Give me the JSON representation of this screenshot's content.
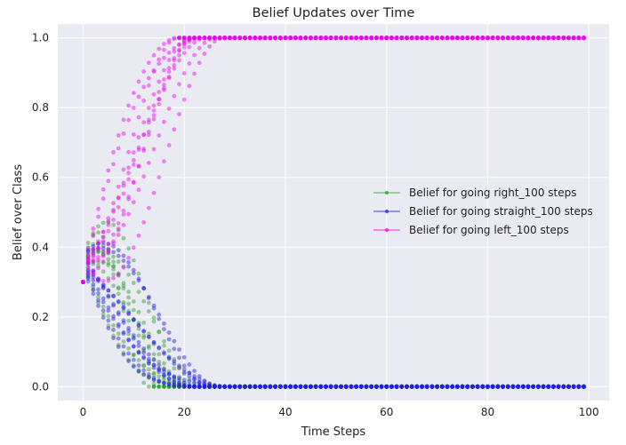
{
  "chart_data": {
    "type": "scatter",
    "title": "Belief Updates over Time",
    "xlabel": "Time Steps",
    "ylabel": "Belief over Class",
    "xlim": [
      -5,
      104
    ],
    "ylim": [
      -0.04,
      1.04
    ],
    "xticks": [
      0,
      20,
      40,
      60,
      80,
      100
    ],
    "yticks": [
      0.0,
      0.2,
      0.4,
      0.6,
      0.8,
      1.0
    ],
    "ytick_labels": [
      "0.0",
      "0.2",
      "0.4",
      "0.6",
      "0.8",
      "1.0"
    ],
    "grid": true,
    "legend_position": "center-right",
    "steps": 100,
    "series": [
      {
        "name": "Belief for going right_100 steps",
        "color": "#2ca02c",
        "bundle": [
          {
            "converge_step": 17,
            "peak": 0.0,
            "dip": 0.0
          },
          {
            "converge_step": 21,
            "peak": 0.0,
            "dip": 0.0
          }
        ]
      },
      {
        "name": "Belief for going straight_100 steps",
        "color": "#1f1fdf",
        "bundle": [
          {
            "converge_step": 22,
            "peak": 0.0,
            "dip": 0.0
          },
          {
            "converge_step": 30,
            "peak": 0.0,
            "dip": 0.0
          }
        ]
      },
      {
        "name": "Belief for going left_100 steps",
        "color": "#ee00ee",
        "bundle": [
          {
            "converge_step": 20,
            "peak": 1.0,
            "dip": 0.0
          },
          {
            "converge_step": 26,
            "peak": 1.0,
            "dip": 0.0
          }
        ]
      }
    ],
    "initial_value": 0.3,
    "final_values": {
      "right": 0.0,
      "straight": 0.0,
      "left": 1.0
    }
  }
}
